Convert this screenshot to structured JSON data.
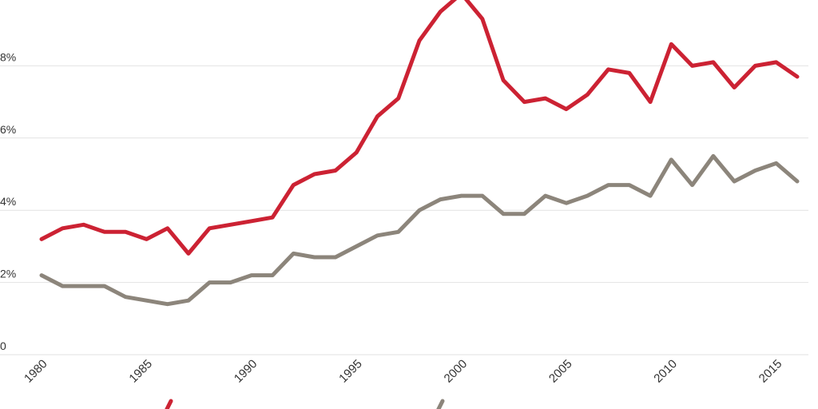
{
  "chart_data": {
    "type": "line",
    "title": "",
    "xlabel": "",
    "ylabel": "",
    "x": [
      1980,
      1981,
      1982,
      1983,
      1984,
      1985,
      1986,
      1987,
      1988,
      1989,
      1990,
      1991,
      1992,
      1993,
      1994,
      1995,
      1996,
      1997,
      1998,
      1999,
      2000,
      2001,
      2002,
      2003,
      2004,
      2005,
      2006,
      2007,
      2008,
      2009,
      2010,
      2011,
      2012,
      2013,
      2014,
      2015,
      2016
    ],
    "series": [
      {
        "color": "#cc2233",
        "values": [
          3.2,
          3.5,
          3.6,
          3.4,
          3.4,
          3.2,
          3.5,
          2.8,
          3.5,
          3.6,
          3.7,
          3.8,
          4.7,
          5.0,
          5.1,
          5.6,
          6.6,
          7.1,
          8.7,
          9.5,
          10.0,
          9.3,
          7.6,
          7.0,
          7.1,
          6.8,
          7.2,
          7.9,
          7.8,
          7.0,
          8.6,
          8.0,
          8.1,
          7.4,
          8.0,
          8.1,
          7.7
        ]
      },
      {
        "color": "#8c857b",
        "values": [
          2.2,
          1.9,
          1.9,
          1.9,
          1.6,
          1.5,
          1.4,
          1.5,
          2.0,
          2.0,
          2.2,
          2.2,
          2.8,
          2.7,
          2.7,
          3.0,
          3.3,
          3.4,
          4.0,
          4.3,
          4.4,
          4.4,
          3.9,
          3.9,
          4.4,
          4.2,
          4.4,
          4.7,
          4.7,
          4.4,
          5.4,
          4.7,
          5.5,
          4.8,
          5.1,
          5.3,
          4.8
        ]
      }
    ],
    "yticks": [
      {
        "value": 0,
        "label": "0"
      },
      {
        "value": 2,
        "label": "2%"
      },
      {
        "value": 4,
        "label": "4%"
      },
      {
        "value": 6,
        "label": "6%"
      },
      {
        "value": 8,
        "label": "8%"
      }
    ],
    "xticks": [
      "1980",
      "1985",
      "1990",
      "1995",
      "2000",
      "2005",
      "2010",
      "2015"
    ],
    "ylim": [
      0,
      10
    ],
    "xlim": [
      1980,
      2016
    ],
    "grid": true,
    "legend": "bottom"
  }
}
